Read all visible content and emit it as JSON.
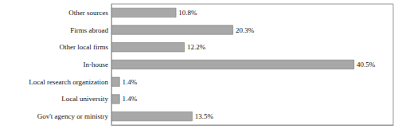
{
  "chart_data": {
    "type": "bar",
    "orientation": "horizontal",
    "categories": [
      "Gov't agency or ministry",
      "Local university",
      "Local research organization",
      "In-house",
      "Other local firms",
      "Firms abroad",
      "Other sources"
    ],
    "values": [
      13.5,
      1.4,
      1.4,
      40.5,
      12.2,
      20.3,
      10.8
    ],
    "value_labels": [
      "13.5%",
      "1.4%",
      "1.4%",
      "40.5%",
      "12.2%",
      "20.3%",
      "10.8%"
    ],
    "color": "#a8a8a8",
    "xlim": [
      0,
      47
    ],
    "data_labels": true,
    "tick_labels": "y",
    "grid": false
  }
}
